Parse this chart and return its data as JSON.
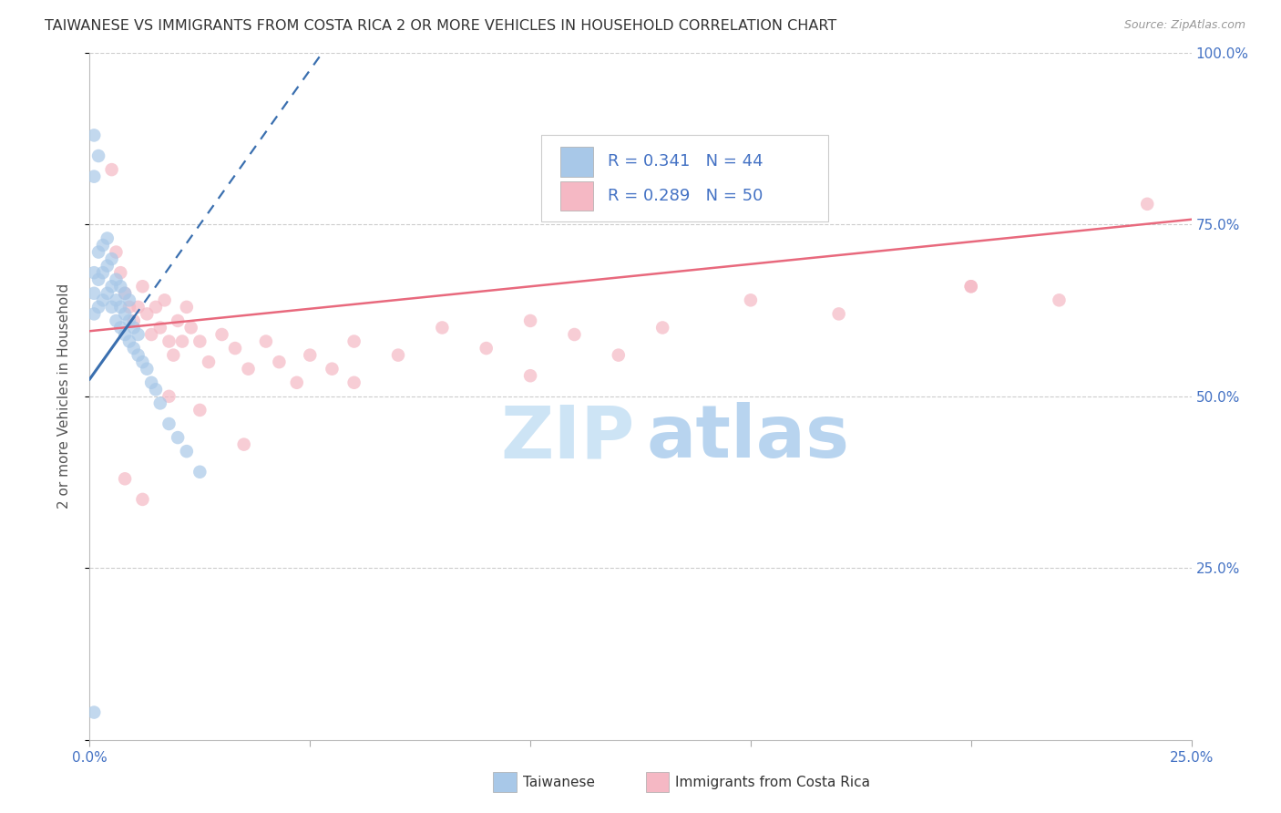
{
  "title": "TAIWANESE VS IMMIGRANTS FROM COSTA RICA 2 OR MORE VEHICLES IN HOUSEHOLD CORRELATION CHART",
  "source_text": "Source: ZipAtlas.com",
  "ylabel": "2 or more Vehicles in Household",
  "taiwanese_R": 0.341,
  "taiwanese_N": 44,
  "costa_rica_R": 0.289,
  "costa_rica_N": 50,
  "taiwanese_color": "#a8c8e8",
  "costa_rica_color": "#f5b8c4",
  "taiwanese_line_color": "#3a6faf",
  "costa_rica_line_color": "#e8697d",
  "grid_color": "#cccccc",
  "title_color": "#333333",
  "axis_color": "#4472c4",
  "xlim": [
    0.0,
    0.25
  ],
  "ylim": [
    0.0,
    1.0
  ],
  "x_tick_positions": [
    0.0,
    0.05,
    0.1,
    0.15,
    0.2,
    0.25
  ],
  "x_tick_labels": [
    "0.0%",
    "",
    "",
    "",
    "",
    "25.0%"
  ],
  "y_ticks": [
    0.0,
    0.25,
    0.5,
    0.75,
    1.0
  ],
  "y_tick_labels_right": [
    "",
    "25.0%",
    "50.0%",
    "75.0%",
    "100.0%"
  ],
  "tw_x": [
    0.001,
    0.001,
    0.001,
    0.002,
    0.002,
    0.002,
    0.003,
    0.003,
    0.003,
    0.004,
    0.004,
    0.004,
    0.005,
    0.005,
    0.005,
    0.006,
    0.006,
    0.006,
    0.007,
    0.007,
    0.007,
    0.008,
    0.008,
    0.008,
    0.009,
    0.009,
    0.009,
    0.01,
    0.01,
    0.011,
    0.011,
    0.012,
    0.013,
    0.014,
    0.015,
    0.016,
    0.018,
    0.02,
    0.022,
    0.025,
    0.001,
    0.002,
    0.001,
    0.001
  ],
  "tw_y": [
    0.62,
    0.65,
    0.68,
    0.63,
    0.67,
    0.71,
    0.64,
    0.68,
    0.72,
    0.65,
    0.69,
    0.73,
    0.63,
    0.66,
    0.7,
    0.61,
    0.64,
    0.67,
    0.6,
    0.63,
    0.66,
    0.59,
    0.62,
    0.65,
    0.58,
    0.61,
    0.64,
    0.57,
    0.6,
    0.56,
    0.59,
    0.55,
    0.54,
    0.52,
    0.51,
    0.49,
    0.46,
    0.44,
    0.42,
    0.39,
    0.88,
    0.85,
    0.82,
    0.04
  ],
  "cr_x": [
    0.005,
    0.006,
    0.007,
    0.008,
    0.009,
    0.01,
    0.011,
    0.012,
    0.013,
    0.014,
    0.015,
    0.016,
    0.017,
    0.018,
    0.019,
    0.02,
    0.021,
    0.022,
    0.023,
    0.025,
    0.027,
    0.03,
    0.033,
    0.036,
    0.04,
    0.043,
    0.047,
    0.05,
    0.055,
    0.06,
    0.07,
    0.08,
    0.09,
    0.1,
    0.11,
    0.12,
    0.13,
    0.15,
    0.17,
    0.2,
    0.22,
    0.24,
    0.008,
    0.012,
    0.018,
    0.025,
    0.035,
    0.06,
    0.1,
    0.2
  ],
  "cr_y": [
    0.83,
    0.71,
    0.68,
    0.65,
    0.63,
    0.61,
    0.63,
    0.66,
    0.62,
    0.59,
    0.63,
    0.6,
    0.64,
    0.58,
    0.56,
    0.61,
    0.58,
    0.63,
    0.6,
    0.58,
    0.55,
    0.59,
    0.57,
    0.54,
    0.58,
    0.55,
    0.52,
    0.56,
    0.54,
    0.58,
    0.56,
    0.6,
    0.57,
    0.61,
    0.59,
    0.56,
    0.6,
    0.64,
    0.62,
    0.66,
    0.64,
    0.78,
    0.38,
    0.35,
    0.5,
    0.48,
    0.43,
    0.52,
    0.53,
    0.66
  ],
  "tw_line_slope": 9.0,
  "tw_line_intercept": 0.525,
  "cr_line_slope": 0.65,
  "cr_line_intercept": 0.595
}
